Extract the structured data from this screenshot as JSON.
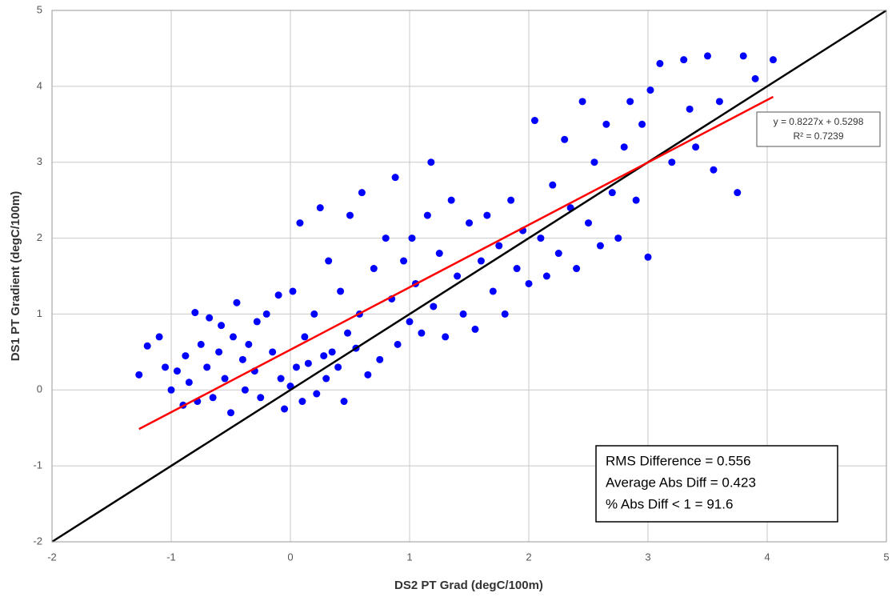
{
  "chart_data": {
    "type": "scatter",
    "x_label": "DS2 PT Grad (degC/100m)",
    "y_label": "DS1 PT Gradient (degC/100m)",
    "xlim": [
      -2,
      5
    ],
    "ylim": [
      -2,
      5
    ],
    "xticks": [
      -2,
      -1,
      0,
      1,
      2,
      3,
      4,
      5
    ],
    "yticks": [
      -2,
      -1,
      0,
      1,
      2,
      3,
      4,
      5
    ],
    "grid": true,
    "color": "#0000ff",
    "x": [
      -1.27,
      -1.2,
      -1.1,
      -1.05,
      -1.0,
      -0.95,
      -0.9,
      -0.88,
      -0.85,
      -0.8,
      -0.78,
      -0.75,
      -0.7,
      -0.68,
      -0.65,
      -0.6,
      -0.58,
      -0.55,
      -0.5,
      -0.48,
      -0.45,
      -0.4,
      -0.38,
      -0.35,
      -0.3,
      -0.28,
      -0.25,
      -0.2,
      -0.15,
      -0.1,
      -0.08,
      -0.05,
      0,
      0.02,
      0.05,
      0.08,
      0.1,
      0.12,
      0.15,
      0.2,
      0.22,
      0.25,
      0.28,
      0.3,
      0.32,
      0.35,
      0.4,
      0.42,
      0.45,
      0.48,
      0.5,
      0.55,
      0.58,
      0.6,
      0.65,
      0.7,
      0.75,
      0.8,
      0.85,
      0.88,
      0.9,
      0.95,
      1.0,
      1.02,
      1.05,
      1.1,
      1.15,
      1.18,
      1.2,
      1.25,
      1.3,
      1.35,
      1.4,
      1.45,
      1.5,
      1.55,
      1.6,
      1.65,
      1.7,
      1.75,
      1.8,
      1.85,
      1.9,
      1.95,
      2.0,
      2.05,
      2.1,
      2.15,
      2.2,
      2.25,
      2.3,
      2.35,
      2.4,
      2.45,
      2.5,
      2.55,
      2.6,
      2.65,
      2.7,
      2.75,
      2.8,
      2.85,
      2.9,
      2.95,
      3.0,
      3.02,
      3.1,
      3.2,
      3.3,
      3.35,
      3.4,
      3.5,
      3.55,
      3.6,
      3.75,
      3.8,
      3.9,
      4.05
    ],
    "values": [
      0.2,
      0.58,
      0.7,
      0.3,
      0.0,
      0.25,
      -0.2,
      0.45,
      0.1,
      1.02,
      -0.15,
      0.6,
      0.3,
      0.95,
      -0.1,
      0.5,
      0.85,
      0.15,
      -0.3,
      0.7,
      1.15,
      0.4,
      0.0,
      0.6,
      0.25,
      0.9,
      -0.1,
      1.0,
      0.5,
      1.25,
      0.15,
      -0.25,
      0.05,
      1.3,
      0.3,
      2.2,
      -0.15,
      0.7,
      0.35,
      1.0,
      -0.05,
      2.4,
      0.45,
      0.15,
      1.7,
      0.5,
      0.3,
      1.3,
      -0.15,
      0.75,
      2.3,
      0.55,
      1.0,
      2.6,
      0.2,
      1.6,
      0.4,
      2.0,
      1.2,
      2.8,
      0.6,
      1.7,
      0.9,
      2.0,
      1.4,
      0.75,
      2.3,
      3.0,
      1.1,
      1.8,
      0.7,
      2.5,
      1.5,
      1.0,
      2.2,
      0.8,
      1.7,
      2.3,
      1.3,
      1.9,
      1.0,
      2.5,
      1.6,
      2.1,
      1.4,
      3.55,
      2.0,
      1.5,
      2.7,
      1.8,
      3.3,
      2.4,
      1.6,
      3.8,
      2.2,
      3.0,
      1.9,
      3.5,
      2.6,
      2.0,
      3.2,
      3.8,
      2.5,
      3.5,
      1.75,
      3.95,
      4.3,
      3.0,
      4.35,
      3.7,
      3.2,
      4.4,
      2.9,
      3.8,
      2.6,
      4.4,
      4.1,
      4.35
    ],
    "identity_line": {
      "color": "#000000",
      "x": [
        -2,
        5
      ],
      "y": [
        -2,
        5
      ]
    },
    "trendline": {
      "color": "#ff0000",
      "x": [
        -1.27,
        4.05
      ],
      "y": [
        -0.515,
        3.8617
      ]
    },
    "equation": "y = 0.8227x + 0.5298",
    "r_squared": "R² = 0.7239",
    "stats": [
      "RMS Difference = 0.556",
      "Average Abs Diff = 0.423",
      "% Abs Diff < 1 = 91.6"
    ]
  }
}
